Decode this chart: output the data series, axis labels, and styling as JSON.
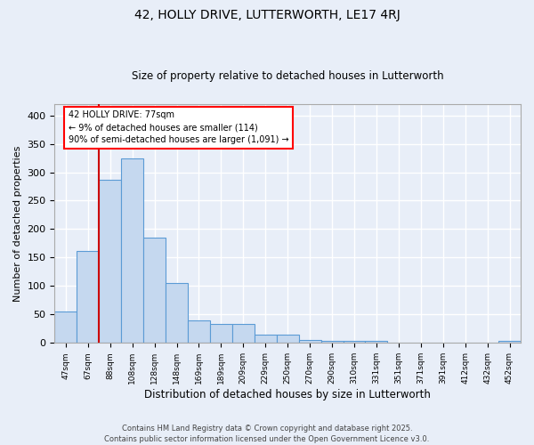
{
  "title1": "42, HOLLY DRIVE, LUTTERWORTH, LE17 4RJ",
  "title2": "Size of property relative to detached houses in Lutterworth",
  "xlabel": "Distribution of detached houses by size in Lutterworth",
  "ylabel": "Number of detached properties",
  "categories": [
    "47sqm",
    "67sqm",
    "88sqm",
    "108sqm",
    "128sqm",
    "148sqm",
    "169sqm",
    "189sqm",
    "209sqm",
    "229sqm",
    "250sqm",
    "270sqm",
    "290sqm",
    "310sqm",
    "331sqm",
    "351sqm",
    "371sqm",
    "391sqm",
    "412sqm",
    "432sqm",
    "452sqm"
  ],
  "values": [
    55,
    162,
    287,
    325,
    185,
    105,
    40,
    34,
    34,
    15,
    15,
    6,
    4,
    4,
    4,
    0,
    0,
    0,
    0,
    0,
    4
  ],
  "bar_color": "#c5d8ef",
  "bar_edge_color": "#5b9bd5",
  "red_line_x": 1.5,
  "annotation_box_text": "42 HOLLY DRIVE: 77sqm\n← 9% of detached houses are smaller (114)\n90% of semi-detached houses are larger (1,091) →",
  "ylim": [
    0,
    420
  ],
  "yticks": [
    0,
    50,
    100,
    150,
    200,
    250,
    300,
    350,
    400
  ],
  "background_color": "#e8eef8",
  "grid_color": "#ffffff",
  "footer": "Contains HM Land Registry data © Crown copyright and database right 2025.\nContains public sector information licensed under the Open Government Licence v3.0."
}
